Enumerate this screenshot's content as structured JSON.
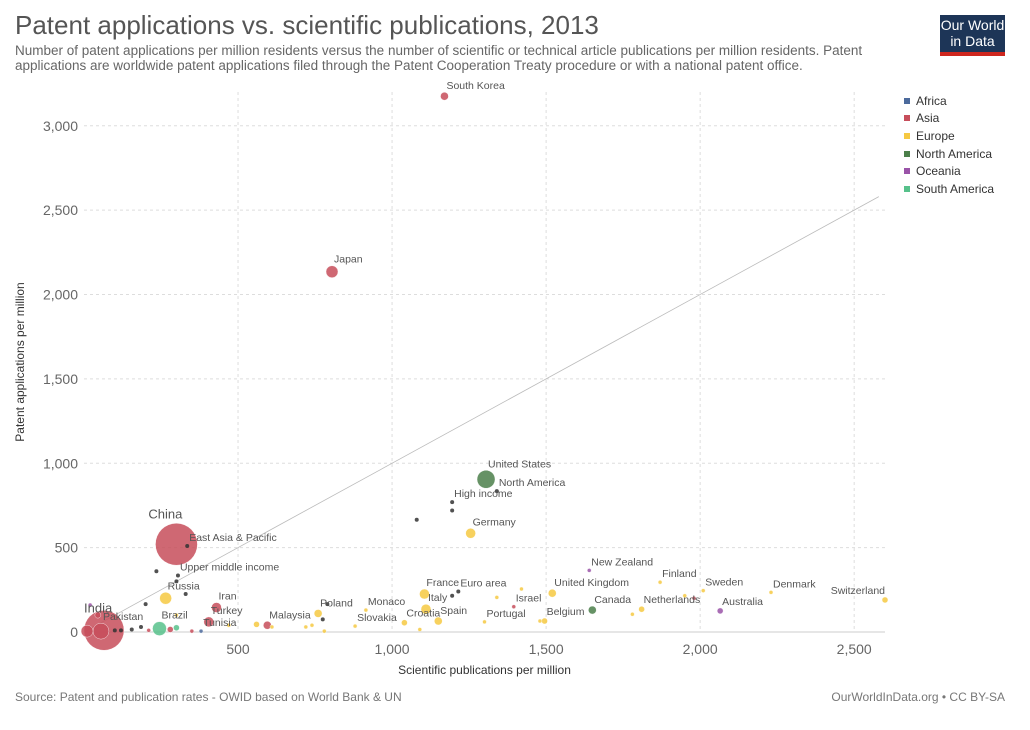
{
  "header": {
    "title": "Patent applications vs. scientific publications, 2013",
    "subtitle": "Number of patent applications per million residents versus the number of scientific or technical article publications per million residents. Patent applications are worldwide patent applications filed through the Patent Cooperation Treaty procedure or with a national patent office.",
    "logo_line1": "Our World",
    "logo_line2": "in Data"
  },
  "footer": {
    "source": "Source: Patent and publication rates - OWID based on World Bank & UN",
    "credit": "OurWorldInData.org • CC BY-SA"
  },
  "legend": {
    "items": [
      {
        "label": "Africa",
        "color": "#4c6a9c"
      },
      {
        "label": "Asia",
        "color": "#c74e5b"
      },
      {
        "label": "Europe",
        "color": "#f6c942"
      },
      {
        "label": "North America",
        "color": "#4b7f4a"
      },
      {
        "label": "Oceania",
        "color": "#9a53a8"
      },
      {
        "label": "South America",
        "color": "#57c18b"
      }
    ]
  },
  "chart_data": {
    "type": "scatter",
    "title": "Patent applications vs. scientific publications, 2013",
    "xlabel": "Scientific publications per million",
    "ylabel": "Patent applications per million",
    "xlim": [
      0,
      2600
    ],
    "ylim": [
      0,
      3200
    ],
    "xticks": [
      500,
      1000,
      1500,
      2000,
      2500
    ],
    "yticks": [
      0,
      500,
      1000,
      1500,
      2000,
      2500,
      3000
    ],
    "xtick_labels": [
      "500",
      "1,000",
      "1,500",
      "2,000",
      "2,500"
    ],
    "ytick_labels": [
      "0",
      "500",
      "1,000",
      "1,500",
      "2,000",
      "2,500",
      "3,000"
    ],
    "grid": true,
    "reference_line": [
      [
        0,
        0
      ],
      [
        2580,
        2580
      ]
    ],
    "legend_position": "top-right",
    "points": [
      {
        "label": "South Korea",
        "x": 1170,
        "y": 3175,
        "color": "#c74e5b",
        "size": 4
      },
      {
        "label": "Japan",
        "x": 805,
        "y": 2135,
        "color": "#c74e5b",
        "size": 6
      },
      {
        "label": "United States",
        "x": 1305,
        "y": 905,
        "color": "#4b7f4a",
        "size": 9
      },
      {
        "label": "North America",
        "x": 1340,
        "y": 835,
        "color": "#333333",
        "size": 2
      },
      {
        "label": "High income",
        "x": 1195,
        "y": 770,
        "color": "#333333",
        "size": 2
      },
      {
        "label": "Germany",
        "x": 1255,
        "y": 585,
        "color": "#f6c942",
        "size": 5
      },
      {
        "label": "China",
        "x": 300,
        "y": 520,
        "color": "#c74e5b",
        "size": 21
      },
      {
        "label": "East Asia & Pacific",
        "x": 335,
        "y": 510,
        "color": "#333333",
        "size": 2
      },
      {
        "label": "Upper middle income",
        "x": 305,
        "y": 335,
        "color": "#333333",
        "size": 2
      },
      {
        "label": "Russia",
        "x": 265,
        "y": 200,
        "color": "#f6c942",
        "size": 6
      },
      {
        "label": "Iran",
        "x": 430,
        "y": 145,
        "color": "#c74e5b",
        "size": 5
      },
      {
        "label": "Turkey",
        "x": 405,
        "y": 60,
        "color": "#c74e5b",
        "size": 5
      },
      {
        "label": "Tunisia",
        "x": 380,
        "y": 5,
        "color": "#4c6a9c",
        "size": 2
      },
      {
        "label": "Brazil",
        "x": 245,
        "y": 20,
        "color": "#57c18b",
        "size": 7
      },
      {
        "label": "India",
        "x": 65,
        "y": 10,
        "color": "#c74e5b",
        "size": 20
      },
      {
        "label": "Pakistan",
        "x": 55,
        "y": 5,
        "color": "#c74e5b",
        "size": 8
      },
      {
        "label": "Malaysia",
        "x": 595,
        "y": 40,
        "color": "#c74e5b",
        "size": 4
      },
      {
        "label": "Poland",
        "x": 760,
        "y": 110,
        "color": "#f6c942",
        "size": 4
      },
      {
        "label": "Monaco",
        "x": 915,
        "y": 130,
        "color": "#f6c942",
        "size": 2
      },
      {
        "label": "Slovakia",
        "x": 880,
        "y": 35,
        "color": "#f6c942",
        "size": 2
      },
      {
        "label": "Croatia",
        "x": 1040,
        "y": 55,
        "color": "#f6c942",
        "size": 3
      },
      {
        "label": "France",
        "x": 1105,
        "y": 225,
        "color": "#f6c942",
        "size": 5
      },
      {
        "label": "Euro area",
        "x": 1215,
        "y": 240,
        "color": "#333333",
        "size": 2
      },
      {
        "label": "Italy",
        "x": 1110,
        "y": 135,
        "color": "#f6c942",
        "size": 5
      },
      {
        "label": "Spain",
        "x": 1150,
        "y": 65,
        "color": "#f6c942",
        "size": 4
      },
      {
        "label": "Israel",
        "x": 1395,
        "y": 150,
        "color": "#c74e5b",
        "size": 2
      },
      {
        "label": "Portugal",
        "x": 1300,
        "y": 60,
        "color": "#f6c942",
        "size": 2
      },
      {
        "label": "Belgium",
        "x": 1495,
        "y": 65,
        "color": "#f6c942",
        "size": 3
      },
      {
        "label": "United Kingdom",
        "x": 1520,
        "y": 230,
        "color": "#f6c942",
        "size": 4
      },
      {
        "label": "Canada",
        "x": 1650,
        "y": 130,
        "color": "#4b7f4a",
        "size": 4
      },
      {
        "label": "New Zealand",
        "x": 1640,
        "y": 365,
        "color": "#9a53a8",
        "size": 2
      },
      {
        "label": "Finland",
        "x": 1870,
        "y": 295,
        "color": "#f6c942",
        "size": 2
      },
      {
        "label": "Netherlands",
        "x": 1810,
        "y": 135,
        "color": "#f6c942",
        "size": 3
      },
      {
        "label": "Sweden",
        "x": 2010,
        "y": 245,
        "color": "#f6c942",
        "size": 2
      },
      {
        "label": "Australia",
        "x": 2065,
        "y": 125,
        "color": "#9a53a8",
        "size": 3
      },
      {
        "label": "Denmark",
        "x": 2230,
        "y": 235,
        "color": "#f6c942",
        "size": 2
      },
      {
        "label": "Switzerland",
        "x": 2600,
        "y": 190,
        "color": "#f6c942",
        "size": 3
      },
      {
        "label": "",
        "x": 1080,
        "y": 665,
        "color": "#333333",
        "size": 2
      },
      {
        "label": "",
        "x": 1195,
        "y": 720,
        "color": "#333333",
        "size": 2
      },
      {
        "label": "",
        "x": 1195,
        "y": 215,
        "color": "#333333",
        "size": 2
      },
      {
        "label": "",
        "x": 790,
        "y": 165,
        "color": "#333333",
        "size": 2
      },
      {
        "label": "",
        "x": 775,
        "y": 75,
        "color": "#333333",
        "size": 2
      },
      {
        "label": "",
        "x": 235,
        "y": 360,
        "color": "#333333",
        "size": 2
      },
      {
        "label": "",
        "x": 300,
        "y": 300,
        "color": "#333333",
        "size": 2
      },
      {
        "label": "",
        "x": 330,
        "y": 225,
        "color": "#333333",
        "size": 2
      },
      {
        "label": "",
        "x": 200,
        "y": 165,
        "color": "#333333",
        "size": 2
      },
      {
        "label": "",
        "x": 185,
        "y": 30,
        "color": "#333333",
        "size": 2
      },
      {
        "label": "",
        "x": 155,
        "y": 15,
        "color": "#333333",
        "size": 2
      },
      {
        "label": "",
        "x": 120,
        "y": 10,
        "color": "#333333",
        "size": 2
      },
      {
        "label": "",
        "x": 100,
        "y": 10,
        "color": "#333333",
        "size": 2
      },
      {
        "label": "",
        "x": 20,
        "y": 160,
        "color": "#9a53a8",
        "size": 2
      },
      {
        "label": "",
        "x": 45,
        "y": 100,
        "color": "#c74e5b",
        "size": 3
      },
      {
        "label": "",
        "x": 10,
        "y": 5,
        "color": "#c74e5b",
        "size": 6
      },
      {
        "label": "",
        "x": 280,
        "y": 15,
        "color": "#c74e5b",
        "size": 3
      },
      {
        "label": "",
        "x": 300,
        "y": 25,
        "color": "#57c18b",
        "size": 3
      },
      {
        "label": "",
        "x": 210,
        "y": 10,
        "color": "#c74e5b",
        "size": 2
      },
      {
        "label": "",
        "x": 350,
        "y": 5,
        "color": "#c74e5b",
        "size": 2
      },
      {
        "label": "",
        "x": 300,
        "y": 100,
        "color": "#f6c942",
        "size": 2
      },
      {
        "label": "",
        "x": 470,
        "y": 40,
        "color": "#f6c942",
        "size": 2
      },
      {
        "label": "",
        "x": 560,
        "y": 45,
        "color": "#f6c942",
        "size": 3
      },
      {
        "label": "",
        "x": 610,
        "y": 30,
        "color": "#f6c942",
        "size": 2
      },
      {
        "label": "",
        "x": 720,
        "y": 30,
        "color": "#f6c942",
        "size": 2
      },
      {
        "label": "",
        "x": 740,
        "y": 40,
        "color": "#f6c942",
        "size": 2
      },
      {
        "label": "",
        "x": 780,
        "y": 5,
        "color": "#f6c942",
        "size": 2
      },
      {
        "label": "",
        "x": 1090,
        "y": 15,
        "color": "#f6c942",
        "size": 2
      },
      {
        "label": "",
        "x": 1340,
        "y": 205,
        "color": "#f6c942",
        "size": 2
      },
      {
        "label": "",
        "x": 1420,
        "y": 255,
        "color": "#f6c942",
        "size": 2
      },
      {
        "label": "",
        "x": 1480,
        "y": 65,
        "color": "#f6c942",
        "size": 2
      },
      {
        "label": "",
        "x": 1780,
        "y": 105,
        "color": "#f6c942",
        "size": 2
      },
      {
        "label": "",
        "x": 1950,
        "y": 215,
        "color": "#f6c942",
        "size": 2
      },
      {
        "label": "",
        "x": 1980,
        "y": 200,
        "color": "#c74e5b",
        "size": 2
      }
    ]
  }
}
